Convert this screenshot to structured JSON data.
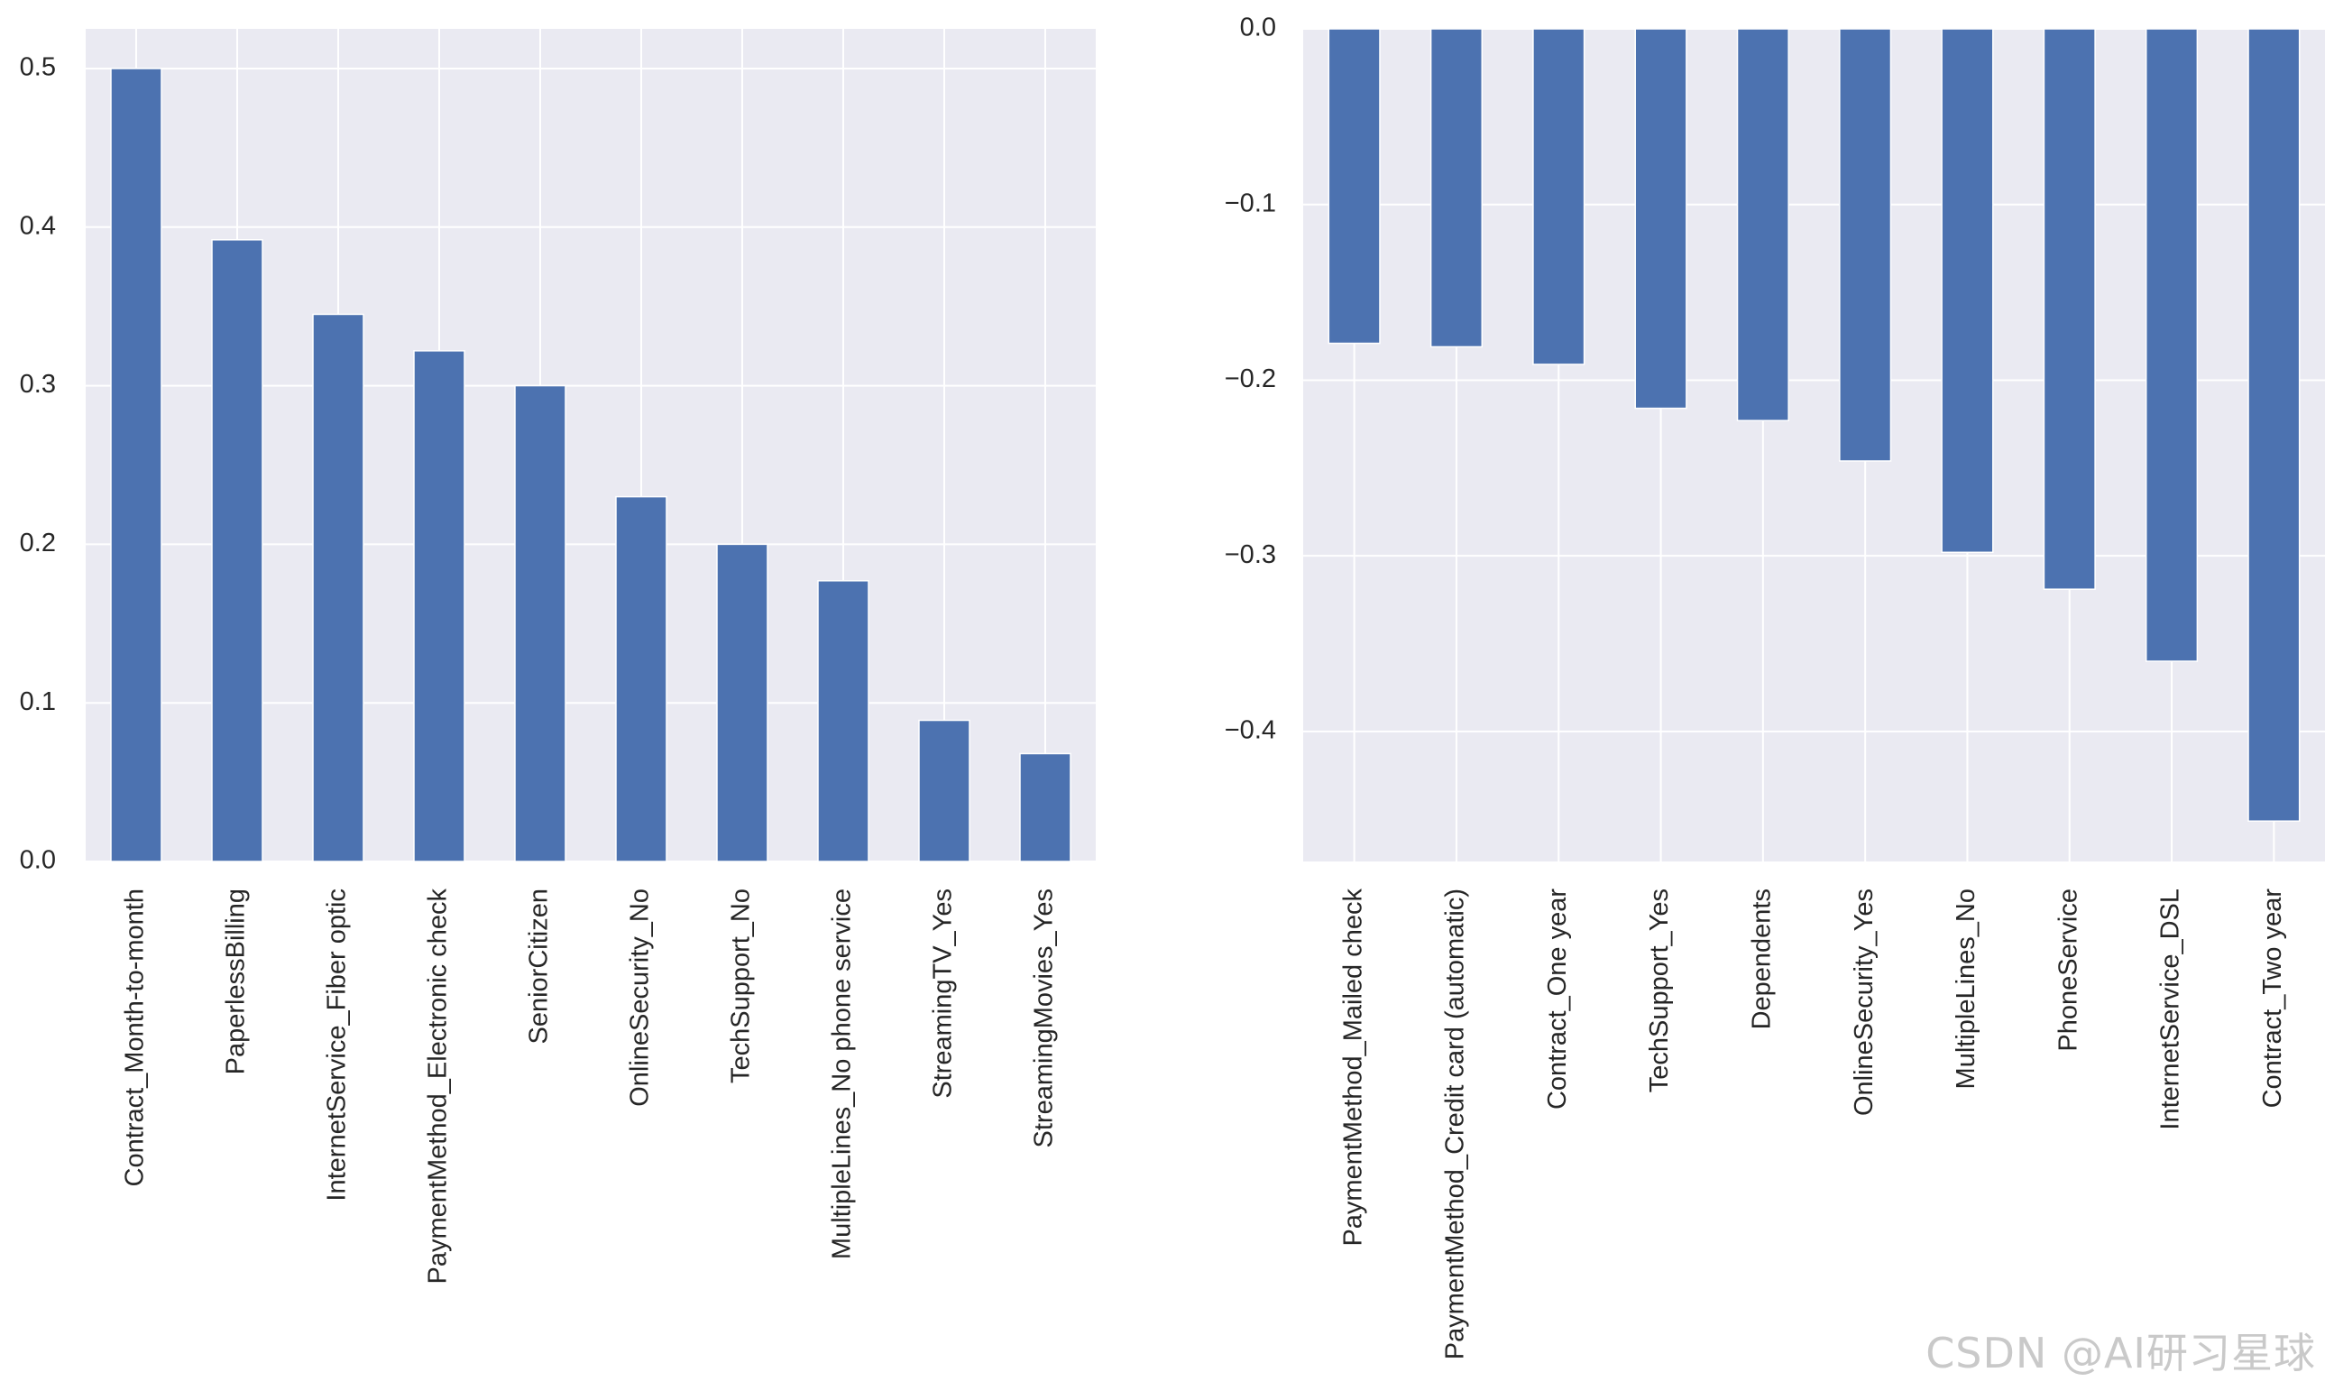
{
  "chart_data": [
    {
      "type": "bar",
      "title": "",
      "xlabel": "",
      "ylabel": "",
      "ylim": [
        0,
        0.525
      ],
      "yticks": [
        "0.0",
        "0.1",
        "0.2",
        "0.3",
        "0.4",
        "0.5"
      ],
      "grid": true,
      "bar_color": "#4c72b0",
      "background_color": "#eaeaf2",
      "categories": [
        "Contract_Month-to-month",
        "PaperlessBilling",
        "InternetService_Fiber optic",
        "PaymentMethod_Electronic check",
        "SeniorCitizen",
        "OnlineSecurity_No",
        "TechSupport_No",
        "MultipleLines_No phone service",
        "StreamingTV_Yes",
        "StreamingMovies_Yes"
      ],
      "values": [
        0.5,
        0.392,
        0.345,
        0.322,
        0.3,
        0.23,
        0.2,
        0.177,
        0.089,
        0.068
      ]
    },
    {
      "type": "bar",
      "title": "",
      "xlabel": "",
      "ylabel": "",
      "ylim": [
        -0.474,
        0.0
      ],
      "yticks": [
        "0.0",
        "−0.1",
        "−0.2",
        "−0.3",
        "−0.4"
      ],
      "grid": true,
      "bar_color": "#4c72b0",
      "background_color": "#eaeaf2",
      "categories": [
        "PaymentMethod_Mailed check",
        "PaymentMethod_Credit card (automatic)",
        "Contract_One year",
        "TechSupport_Yes",
        "Dependents",
        "OnlineSecurity_Yes",
        "MultipleLines_No",
        "PhoneService",
        "InternetService_DSL",
        "Contract_Two year"
      ],
      "values": [
        -0.179,
        -0.181,
        -0.191,
        -0.216,
        -0.223,
        -0.246,
        -0.298,
        -0.319,
        -0.36,
        -0.451
      ]
    }
  ],
  "watermark": "CSDN @AI研习星球"
}
